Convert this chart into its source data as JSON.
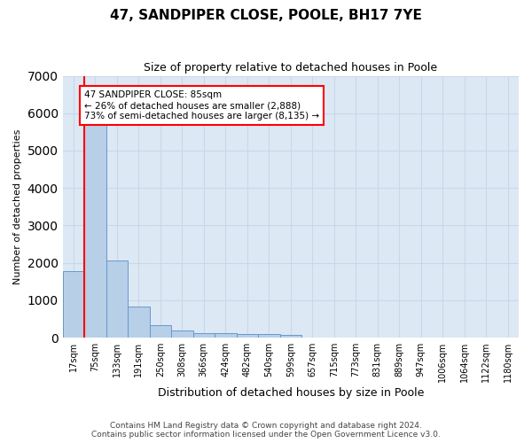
{
  "title": "47, SANDPIPER CLOSE, POOLE, BH17 7YE",
  "subtitle": "Size of property relative to detached houses in Poole",
  "xlabel": "Distribution of detached houses by size in Poole",
  "ylabel": "Number of detached properties",
  "bar_labels": [
    "17sqm",
    "75sqm",
    "133sqm",
    "191sqm",
    "250sqm",
    "308sqm",
    "366sqm",
    "424sqm",
    "482sqm",
    "540sqm",
    "599sqm",
    "657sqm",
    "715sqm",
    "773sqm",
    "831sqm",
    "889sqm",
    "947sqm",
    "1006sqm",
    "1064sqm",
    "1122sqm",
    "1180sqm"
  ],
  "bar_values": [
    1780,
    5780,
    2060,
    820,
    340,
    190,
    130,
    110,
    100,
    90,
    80,
    0,
    0,
    0,
    0,
    0,
    0,
    0,
    0,
    0,
    0
  ],
  "bar_color": "#b8cfe8",
  "bar_edge_color": "#6699cc",
  "property_sqm": 85,
  "annotation_line1": "47 SANDPIPER CLOSE: 85sqm",
  "annotation_line2": "← 26% of detached houses are smaller (2,888)",
  "annotation_line3": "73% of semi-detached houses are larger (8,135) →",
  "annotation_box_color": "white",
  "annotation_box_edge_color": "red",
  "vline_color": "red",
  "ylim": [
    0,
    7000
  ],
  "yticks": [
    0,
    1000,
    2000,
    3000,
    4000,
    5000,
    6000,
    7000
  ],
  "grid_color": "#c8d8e8",
  "background_color": "#dde8f5",
  "footer_line1": "Contains HM Land Registry data © Crown copyright and database right 2024.",
  "footer_line2": "Contains public sector information licensed under the Open Government Licence v3.0."
}
